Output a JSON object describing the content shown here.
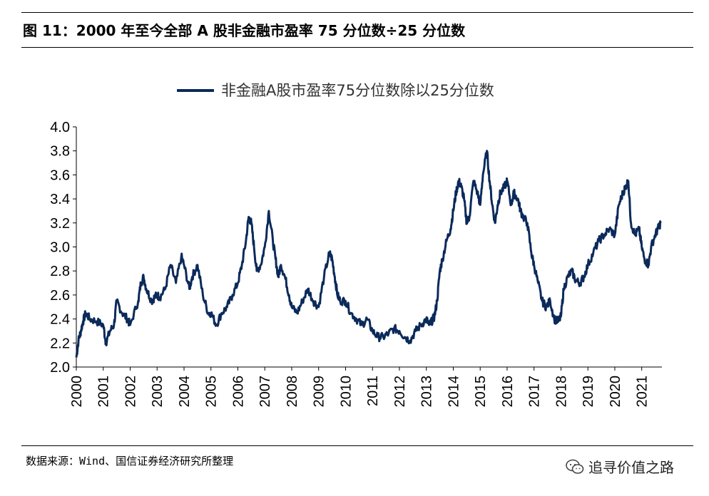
{
  "title": "图 11：2000 年至今全部 A 股非金融市盈率 75 分位数÷25 分位数",
  "source": "数据来源：Wind、国信证券经济研究所整理",
  "watermark": "追寻价值之路",
  "colors": {
    "series": "#0b2a5a",
    "axis": "#000000"
  },
  "chart_data": {
    "type": "line",
    "title": "",
    "xlabel": "",
    "ylabel": "",
    "ylim": [
      2.0,
      4.0
    ],
    "yticks": [
      "2.0",
      "2.2",
      "2.4",
      "2.6",
      "2.8",
      "3.0",
      "3.2",
      "3.4",
      "3.6",
      "3.8",
      "4.0"
    ],
    "xticks": [
      "2000",
      "2001",
      "2002",
      "2003",
      "2004",
      "2005",
      "2006",
      "2007",
      "2008",
      "2009",
      "2010",
      "2011",
      "2012",
      "2013",
      "2014",
      "2015",
      "2016",
      "2017",
      "2018",
      "2019",
      "2020",
      "2021"
    ],
    "xlim": [
      2000.0,
      2021.75
    ],
    "grid": false,
    "legend_position": "top-center",
    "series": [
      {
        "name": "非金融A股市盈率75分位数除以25分位数",
        "x": [
          2000.0,
          2000.08,
          2000.17,
          2000.25,
          2000.35,
          2000.5,
          2000.75,
          2001.0,
          2001.1,
          2001.25,
          2001.4,
          2001.5,
          2001.7,
          2001.9,
          2002.0,
          2002.3,
          2002.4,
          2002.5,
          2002.6,
          2002.8,
          2002.9,
          2003.0,
          2003.1,
          2003.3,
          2003.5,
          2003.7,
          2003.9,
          2004.0,
          2004.2,
          2004.3,
          2004.5,
          2004.7,
          2004.9,
          2005.0,
          2005.2,
          2005.4,
          2005.6,
          2005.8,
          2006.0,
          2006.15,
          2006.3,
          2006.4,
          2006.5,
          2006.6,
          2006.7,
          2006.85,
          2007.0,
          2007.15,
          2007.3,
          2007.4,
          2007.5,
          2007.6,
          2007.75,
          2007.9,
          2008.0,
          2008.2,
          2008.4,
          2008.6,
          2008.8,
          2009.0,
          2009.2,
          2009.4,
          2009.5,
          2009.6,
          2009.7,
          2009.8,
          2010.0,
          2010.2,
          2010.4,
          2010.6,
          2010.8,
          2011.0,
          2011.2,
          2011.4,
          2011.6,
          2011.8,
          2012.0,
          2012.2,
          2012.4,
          2012.6,
          2012.8,
          2013.0,
          2013.1,
          2013.2,
          2013.3,
          2013.4,
          2013.5,
          2013.6,
          2013.75,
          2013.9,
          2014.0,
          2014.1,
          2014.2,
          2014.3,
          2014.4,
          2014.5,
          2014.6,
          2014.75,
          2014.9,
          2015.0,
          2015.1,
          2015.25,
          2015.35,
          2015.45,
          2015.55,
          2015.65,
          2015.75,
          2015.9,
          2016.0,
          2016.15,
          2016.25,
          2016.4,
          2016.5,
          2016.6,
          2016.75,
          2016.9,
          2017.0,
          2017.15,
          2017.3,
          2017.45,
          2017.6,
          2017.75,
          2017.9,
          2018.0,
          2018.1,
          2018.25,
          2018.4,
          2018.55,
          2018.7,
          2018.85,
          2019.0,
          2019.2,
          2019.4,
          2019.6,
          2019.8,
          2020.0,
          2020.15,
          2020.3,
          2020.4,
          2020.5,
          2020.6,
          2020.75,
          2020.9,
          2021.0,
          2021.1,
          2021.25,
          2021.35,
          2021.5,
          2021.6,
          2021.7
        ],
        "y": [
          2.08,
          2.22,
          2.3,
          2.38,
          2.45,
          2.4,
          2.38,
          2.35,
          2.2,
          2.3,
          2.35,
          2.55,
          2.45,
          2.4,
          2.35,
          2.55,
          2.7,
          2.75,
          2.65,
          2.55,
          2.58,
          2.6,
          2.58,
          2.65,
          2.85,
          2.7,
          2.92,
          2.85,
          2.65,
          2.75,
          2.85,
          2.6,
          2.45,
          2.45,
          2.35,
          2.45,
          2.5,
          2.6,
          2.7,
          2.85,
          3.05,
          3.25,
          3.2,
          3.0,
          2.8,
          2.85,
          3.0,
          3.3,
          3.05,
          2.9,
          2.75,
          2.85,
          2.75,
          2.6,
          2.5,
          2.45,
          2.55,
          2.65,
          2.55,
          2.5,
          2.75,
          2.95,
          2.9,
          2.75,
          2.6,
          2.55,
          2.55,
          2.45,
          2.4,
          2.35,
          2.4,
          2.3,
          2.25,
          2.25,
          2.28,
          2.32,
          2.3,
          2.25,
          2.22,
          2.3,
          2.35,
          2.4,
          2.35,
          2.38,
          2.42,
          2.55,
          2.8,
          2.9,
          3.05,
          3.15,
          3.3,
          3.45,
          3.55,
          3.5,
          3.4,
          3.2,
          3.25,
          3.55,
          3.45,
          3.35,
          3.6,
          3.8,
          3.55,
          3.35,
          3.2,
          3.35,
          3.45,
          3.5,
          3.55,
          3.35,
          3.45,
          3.4,
          3.3,
          3.25,
          3.2,
          2.95,
          2.85,
          2.7,
          2.55,
          2.5,
          2.55,
          2.4,
          2.38,
          2.42,
          2.65,
          2.75,
          2.8,
          2.72,
          2.7,
          2.75,
          2.85,
          2.95,
          3.05,
          3.1,
          3.15,
          3.1,
          3.35,
          3.45,
          3.5,
          3.55,
          3.2,
          3.1,
          3.15,
          3.0,
          2.9,
          2.85,
          3.0,
          3.1,
          3.15,
          3.2
        ]
      }
    ]
  }
}
